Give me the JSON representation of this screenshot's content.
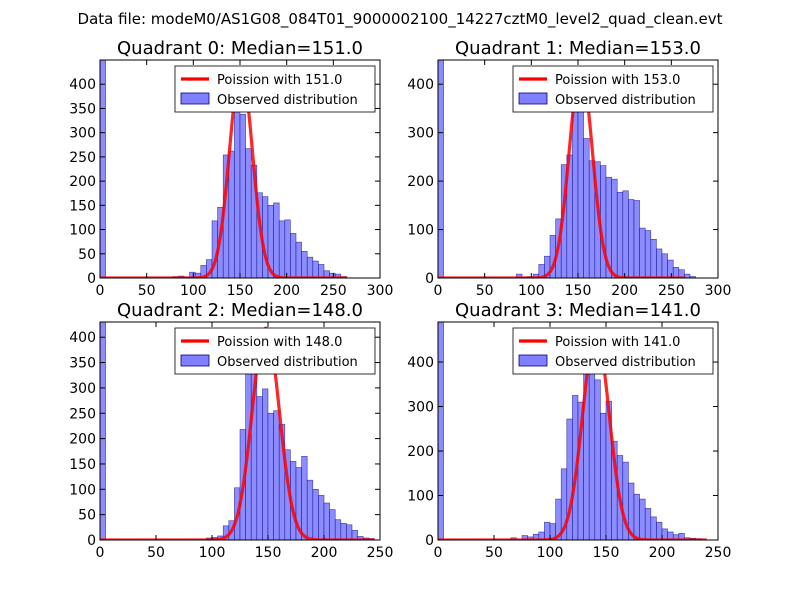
{
  "figure": {
    "suptitle": "Data file: modeM0/AS1G08_084T01_9000002100_14227cztM0_level2_quad_clean.evt"
  },
  "colors": {
    "hist_fill": "#7f7fff",
    "hist_edge": "#000080",
    "poisson_line": "#ff0000",
    "axes": "#000000",
    "background": "#ffffff"
  },
  "chart_data": [
    {
      "type": "bar",
      "title": "Quadrant 0: Median=151.0",
      "median": 151.0,
      "xlim": [
        0,
        300
      ],
      "ylim": [
        0,
        450
      ],
      "xticks": [
        0,
        50,
        100,
        150,
        200,
        250,
        300
      ],
      "yticks": [
        0,
        50,
        100,
        150,
        200,
        250,
        300,
        350,
        400
      ],
      "bin_width": 6,
      "bins": [
        {
          "x": 0,
          "y": 450
        },
        {
          "x": 78,
          "y": 3
        },
        {
          "x": 84,
          "y": 4
        },
        {
          "x": 90,
          "y": 2
        },
        {
          "x": 96,
          "y": 12
        },
        {
          "x": 102,
          "y": 10
        },
        {
          "x": 108,
          "y": 26
        },
        {
          "x": 114,
          "y": 38
        },
        {
          "x": 120,
          "y": 118
        },
        {
          "x": 126,
          "y": 146
        },
        {
          "x": 132,
          "y": 254
        },
        {
          "x": 138,
          "y": 262
        },
        {
          "x": 144,
          "y": 345
        },
        {
          "x": 150,
          "y": 338
        },
        {
          "x": 156,
          "y": 267
        },
        {
          "x": 162,
          "y": 233
        },
        {
          "x": 168,
          "y": 176
        },
        {
          "x": 174,
          "y": 168
        },
        {
          "x": 180,
          "y": 150
        },
        {
          "x": 186,
          "y": 155
        },
        {
          "x": 192,
          "y": 118
        },
        {
          "x": 198,
          "y": 120
        },
        {
          "x": 204,
          "y": 92
        },
        {
          "x": 210,
          "y": 74
        },
        {
          "x": 216,
          "y": 55
        },
        {
          "x": 222,
          "y": 43
        },
        {
          "x": 228,
          "y": 35
        },
        {
          "x": 234,
          "y": 28
        },
        {
          "x": 240,
          "y": 15
        },
        {
          "x": 246,
          "y": 10
        },
        {
          "x": 252,
          "y": 8
        },
        {
          "x": 258,
          "y": 3
        }
      ],
      "poisson": {
        "mean": 151.0,
        "peak": 432,
        "sigma": 12.3,
        "x_range": [
          0,
          265
        ]
      },
      "legend": [
        "Poission with 151.0",
        "Observed distribution"
      ]
    },
    {
      "type": "bar",
      "title": "Quadrant 1: Median=153.0",
      "median": 153.0,
      "xlim": [
        0,
        300
      ],
      "ylim": [
        0,
        450
      ],
      "xticks": [
        0,
        50,
        100,
        150,
        200,
        250,
        300
      ],
      "yticks": [
        0,
        100,
        200,
        300,
        400
      ],
      "bin_width": 6,
      "bins": [
        {
          "x": 0,
          "y": 450
        },
        {
          "x": 84,
          "y": 8
        },
        {
          "x": 90,
          "y": 2
        },
        {
          "x": 96,
          "y": 3
        },
        {
          "x": 102,
          "y": 8
        },
        {
          "x": 108,
          "y": 28
        },
        {
          "x": 114,
          "y": 45
        },
        {
          "x": 120,
          "y": 88
        },
        {
          "x": 126,
          "y": 122
        },
        {
          "x": 132,
          "y": 234
        },
        {
          "x": 138,
          "y": 254
        },
        {
          "x": 144,
          "y": 412
        },
        {
          "x": 150,
          "y": 352
        },
        {
          "x": 156,
          "y": 288
        },
        {
          "x": 162,
          "y": 242
        },
        {
          "x": 168,
          "y": 240
        },
        {
          "x": 174,
          "y": 232
        },
        {
          "x": 180,
          "y": 208
        },
        {
          "x": 186,
          "y": 204
        },
        {
          "x": 192,
          "y": 177
        },
        {
          "x": 198,
          "y": 180
        },
        {
          "x": 204,
          "y": 162
        },
        {
          "x": 210,
          "y": 160
        },
        {
          "x": 216,
          "y": 103
        },
        {
          "x": 222,
          "y": 98
        },
        {
          "x": 228,
          "y": 80
        },
        {
          "x": 234,
          "y": 60
        },
        {
          "x": 240,
          "y": 50
        },
        {
          "x": 246,
          "y": 37
        },
        {
          "x": 252,
          "y": 22
        },
        {
          "x": 258,
          "y": 17
        },
        {
          "x": 264,
          "y": 8
        },
        {
          "x": 270,
          "y": 3
        }
      ],
      "poisson": {
        "mean": 153.0,
        "peak": 432,
        "sigma": 12.4,
        "x_range": [
          0,
          265
        ]
      },
      "legend": [
        "Poission with 153.0",
        "Observed distribution"
      ]
    },
    {
      "type": "bar",
      "title": "Quadrant 2: Median=148.0",
      "median": 148.0,
      "xlim": [
        0,
        250
      ],
      "ylim": [
        0,
        430
      ],
      "xticks": [
        0,
        50,
        100,
        150,
        200,
        250
      ],
      "yticks": [
        0,
        50,
        100,
        150,
        200,
        250,
        300,
        350,
        400
      ],
      "bin_width": 5,
      "bins": [
        {
          "x": 0,
          "y": 430
        },
        {
          "x": 95,
          "y": 4
        },
        {
          "x": 100,
          "y": 5
        },
        {
          "x": 105,
          "y": 8
        },
        {
          "x": 110,
          "y": 28
        },
        {
          "x": 115,
          "y": 38
        },
        {
          "x": 120,
          "y": 103
        },
        {
          "x": 125,
          "y": 218
        },
        {
          "x": 130,
          "y": 360
        },
        {
          "x": 135,
          "y": 330
        },
        {
          "x": 140,
          "y": 283
        },
        {
          "x": 145,
          "y": 298
        },
        {
          "x": 150,
          "y": 250
        },
        {
          "x": 155,
          "y": 255
        },
        {
          "x": 160,
          "y": 228
        },
        {
          "x": 165,
          "y": 178
        },
        {
          "x": 170,
          "y": 155
        },
        {
          "x": 175,
          "y": 143
        },
        {
          "x": 180,
          "y": 165
        },
        {
          "x": 185,
          "y": 118
        },
        {
          "x": 190,
          "y": 100
        },
        {
          "x": 195,
          "y": 88
        },
        {
          "x": 200,
          "y": 73
        },
        {
          "x": 205,
          "y": 60
        },
        {
          "x": 210,
          "y": 40
        },
        {
          "x": 215,
          "y": 33
        },
        {
          "x": 220,
          "y": 30
        },
        {
          "x": 225,
          "y": 19
        },
        {
          "x": 230,
          "y": 7
        },
        {
          "x": 235,
          "y": 4
        },
        {
          "x": 240,
          "y": 3
        }
      ],
      "poisson": {
        "mean": 148.0,
        "peak": 418,
        "sigma": 12.2,
        "x_range": [
          0,
          245
        ]
      },
      "legend": [
        "Poission with 148.0",
        "Observed distribution"
      ]
    },
    {
      "type": "bar",
      "title": "Quadrant 3: Median=141.0",
      "median": 141.0,
      "xlim": [
        0,
        250
      ],
      "ylim": [
        0,
        490
      ],
      "xticks": [
        0,
        50,
        100,
        150,
        200,
        250
      ],
      "yticks": [
        0,
        100,
        200,
        300,
        400
      ],
      "bin_width": 5,
      "bins": [
        {
          "x": 0,
          "y": 490
        },
        {
          "x": 65,
          "y": 5
        },
        {
          "x": 75,
          "y": 10
        },
        {
          "x": 80,
          "y": 7
        },
        {
          "x": 85,
          "y": 13
        },
        {
          "x": 90,
          "y": 18
        },
        {
          "x": 95,
          "y": 40
        },
        {
          "x": 100,
          "y": 37
        },
        {
          "x": 105,
          "y": 92
        },
        {
          "x": 110,
          "y": 160
        },
        {
          "x": 115,
          "y": 272
        },
        {
          "x": 120,
          "y": 325
        },
        {
          "x": 125,
          "y": 310
        },
        {
          "x": 130,
          "y": 410
        },
        {
          "x": 135,
          "y": 448
        },
        {
          "x": 140,
          "y": 360
        },
        {
          "x": 145,
          "y": 285
        },
        {
          "x": 150,
          "y": 312
        },
        {
          "x": 155,
          "y": 222
        },
        {
          "x": 160,
          "y": 190
        },
        {
          "x": 165,
          "y": 175
        },
        {
          "x": 170,
          "y": 128
        },
        {
          "x": 175,
          "y": 103
        },
        {
          "x": 180,
          "y": 92
        },
        {
          "x": 185,
          "y": 71
        },
        {
          "x": 190,
          "y": 52
        },
        {
          "x": 195,
          "y": 40
        },
        {
          "x": 200,
          "y": 25
        },
        {
          "x": 205,
          "y": 18
        },
        {
          "x": 210,
          "y": 12
        },
        {
          "x": 215,
          "y": 15
        },
        {
          "x": 220,
          "y": 5
        },
        {
          "x": 225,
          "y": 4
        },
        {
          "x": 230,
          "y": 3
        }
      ],
      "poisson": {
        "mean": 141.0,
        "peak": 465,
        "sigma": 11.9,
        "x_range": [
          0,
          240
        ]
      },
      "legend": [
        "Poission with 141.0",
        "Observed distribution"
      ]
    }
  ]
}
